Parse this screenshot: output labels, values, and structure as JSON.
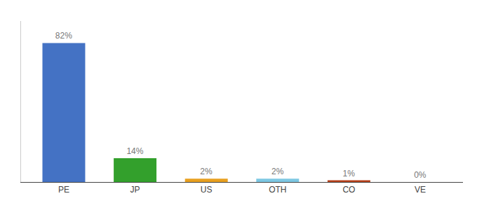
{
  "chart_data": {
    "type": "bar",
    "categories": [
      "PE",
      "JP",
      "US",
      "OTH",
      "CO",
      "VE"
    ],
    "values": [
      82,
      14,
      2,
      2,
      1,
      0
    ],
    "value_labels": [
      "82%",
      "14%",
      "2%",
      "2%",
      "1%",
      "0%"
    ],
    "data_labels": true,
    "colors": [
      "#4472c4",
      "#33a02c",
      "#e8a020",
      "#7ec8e3",
      "#b5401a",
      "#c0392b"
    ],
    "ylim": [
      0,
      95
    ],
    "grid": false,
    "tick_labels": "x"
  }
}
